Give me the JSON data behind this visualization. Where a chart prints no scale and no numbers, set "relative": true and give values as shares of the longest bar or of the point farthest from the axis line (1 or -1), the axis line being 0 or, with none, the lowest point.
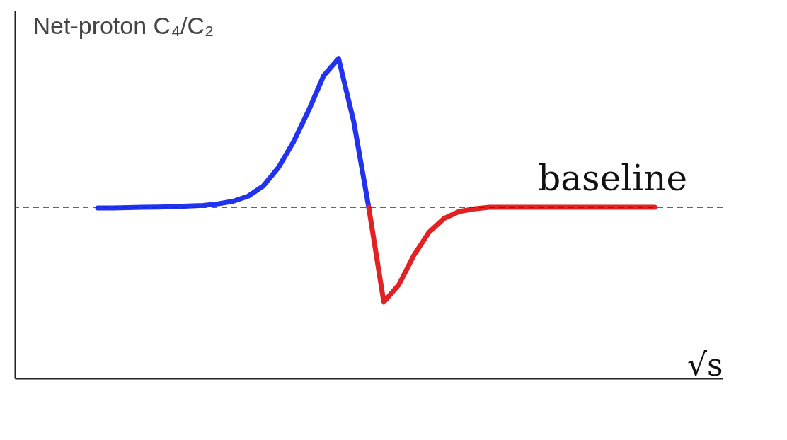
{
  "chart_data": {
    "type": "line",
    "relative": true,
    "ylabel": "Net-proton C₄/C₂",
    "xlabel": "√s",
    "categories": [
      null,
      null,
      null,
      null,
      null,
      null,
      null,
      null,
      null,
      null,
      null,
      null,
      null,
      null,
      null,
      null,
      null,
      null,
      null,
      null,
      null,
      null,
      null,
      null,
      null,
      null,
      null,
      null,
      null,
      null,
      null,
      null,
      null,
      null,
      null,
      null,
      null,
      null
    ],
    "series": [
      {
        "color": "#2233ee",
        "values": [
          0.533,
          0.533,
          0.534,
          0.535,
          0.536,
          0.537,
          0.539,
          0.541,
          0.546,
          0.554,
          0.57,
          0.602,
          0.659,
          0.739,
          0.837,
          0.946,
          1.0,
          0.804,
          0.535,
          null,
          null,
          null,
          null,
          null,
          null,
          null,
          null,
          null,
          null,
          null,
          null,
          null,
          null,
          null,
          null,
          null,
          null,
          null
        ]
      },
      {
        "color": "#e02222",
        "values": [
          null,
          null,
          null,
          null,
          null,
          null,
          null,
          null,
          null,
          null,
          null,
          null,
          null,
          null,
          null,
          null,
          null,
          null,
          0.535,
          0.239,
          0.293,
          0.385,
          0.457,
          0.5,
          0.522,
          0.53,
          0.535,
          0.535,
          0.535,
          0.535,
          0.535,
          0.535,
          0.535,
          0.535,
          0.535,
          0.535,
          0.535,
          0.535
        ]
      }
    ],
    "ref_lines": [
      {
        "axis": "y",
        "value": 0.535,
        "label": "baseline",
        "color": "#333333",
        "line_style": "dashed"
      }
    ],
    "legend": false,
    "grid": false
  }
}
